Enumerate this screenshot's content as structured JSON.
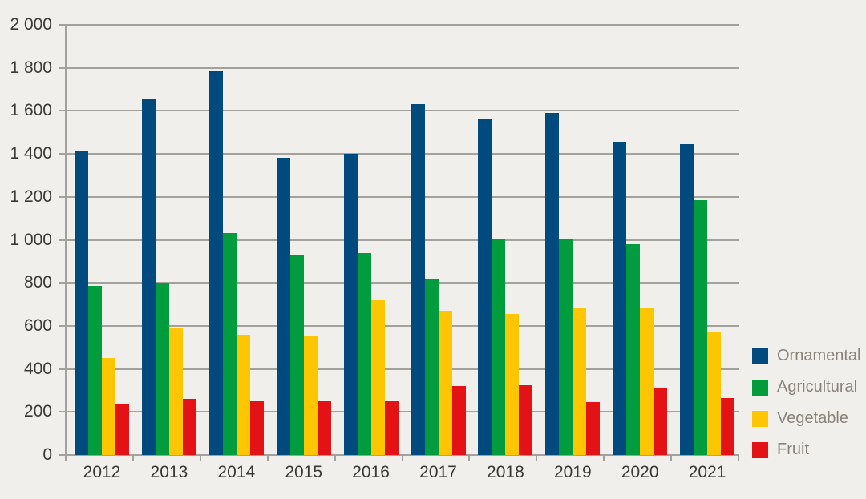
{
  "chart_data": {
    "type": "bar",
    "title": "",
    "categories": [
      "2012",
      "2013",
      "2014",
      "2015",
      "2016",
      "2017",
      "2018",
      "2019",
      "2020",
      "2021"
    ],
    "series": [
      {
        "name": "Ornamental",
        "color": "#004a7d",
        "values": [
          1410,
          1655,
          1785,
          1380,
          1400,
          1630,
          1560,
          1590,
          1455,
          1445
        ]
      },
      {
        "name": "Agricultural",
        "color": "#009c3d",
        "values": [
          785,
          800,
          1030,
          930,
          940,
          820,
          1005,
          1005,
          980,
          1185
        ]
      },
      {
        "name": "Vegetable",
        "color": "#fdc600",
        "values": [
          450,
          590,
          560,
          550,
          720,
          670,
          655,
          680,
          685,
          575
        ]
      },
      {
        "name": "Fruit",
        "color": "#e21217",
        "values": [
          240,
          260,
          250,
          250,
          250,
          320,
          325,
          245,
          310,
          265
        ]
      }
    ],
    "xlabel": "",
    "ylabel": "",
    "ylim": [
      0,
      2000
    ],
    "ytick_step": 200,
    "ytick_labels": [
      "0",
      "200",
      "400",
      "600",
      "800",
      "1 000",
      "1 200",
      "1 400",
      "1 600",
      "1 800",
      "2 000"
    ],
    "grid": true,
    "legend_position": "right-bottom"
  },
  "colors": {
    "background": "#f1efeb",
    "gridline": "#a3a19c",
    "axis_text": "#3a3936",
    "legend_text": "#8a8379"
  }
}
